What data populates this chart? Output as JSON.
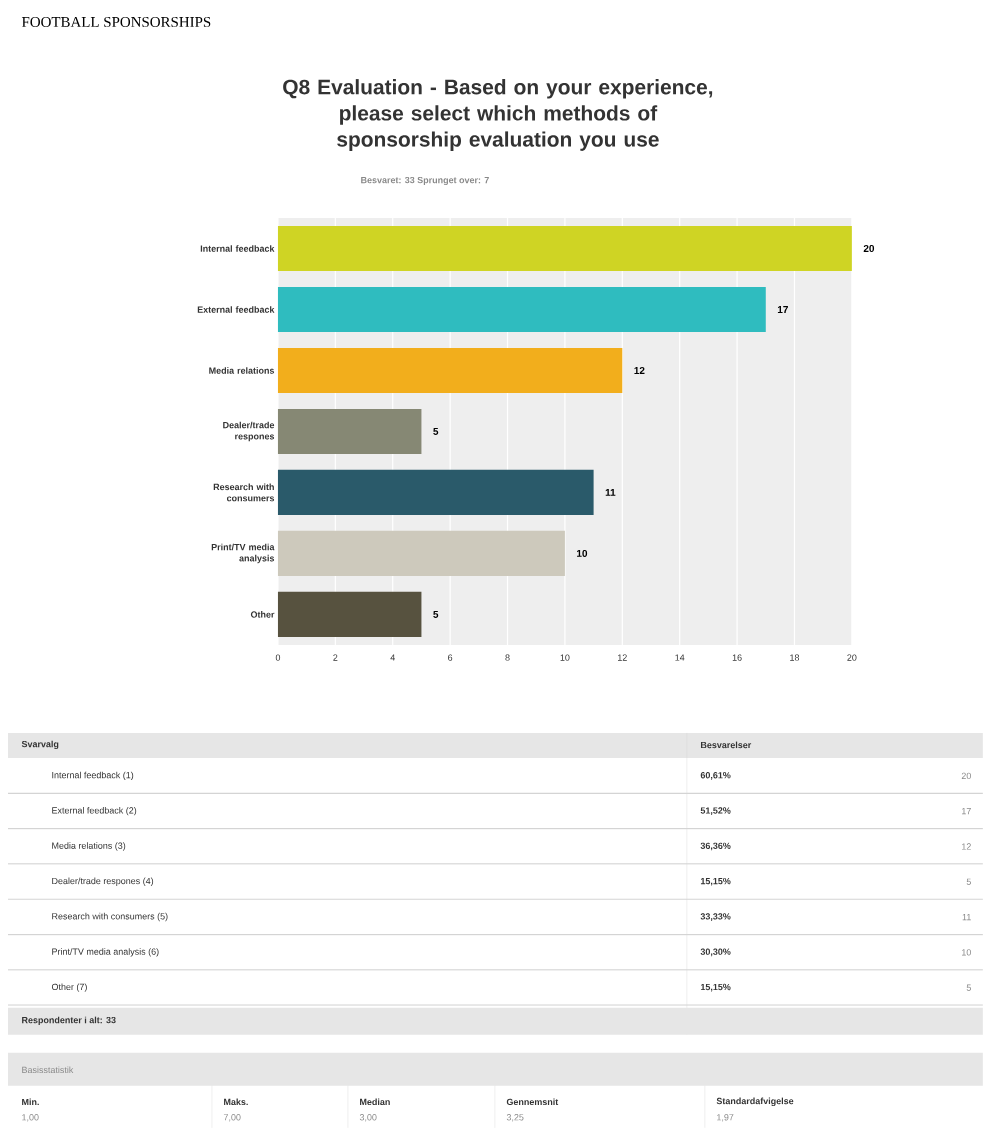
{
  "chart_data": {
    "type": "bar",
    "orientation": "horizontal",
    "title": "Q8 Evaluation - Based on your experience, please select which methods of sponsorship evaluation you use",
    "subtitle": "Besvaret: 33    Sprunget over: 7",
    "categories": [
      "Internal feedback",
      "External feedback",
      "Media relations",
      "Dealer/trade respones",
      "Research with consumers",
      "Print/TV media analysis",
      "Other"
    ],
    "values": [
      20,
      17,
      12,
      5,
      11,
      10,
      5
    ],
    "colors": [
      "#cfd424",
      "#2fbcbf",
      "#f2ae1c",
      "#868874",
      "#2a5a6a",
      "#cdc9bc",
      "#57523f"
    ],
    "xlim": [
      0,
      20
    ],
    "xticks": [
      0,
      2,
      4,
      6,
      8,
      10,
      12,
      14,
      16,
      18,
      20
    ],
    "grid": "x",
    "data_labels": true,
    "annotations": [
      "FOOTBALL SPONSORSHIPS",
      "Svarvalg",
      "Besvarelser",
      "Internal feedback (1)",
      "60,61%",
      "20",
      "External feedback (2)",
      "51,52%",
      "17",
      "Media relations (3)",
      "36,36%",
      "12",
      "Dealer/trade respones (4)",
      "15,15%",
      "5",
      "Research with consumers (5)",
      "33,33%",
      "11",
      "Print/TV media analysis (6)",
      "30,30%",
      "10",
      "Other (7)",
      "15,15%",
      "5",
      "Respondenter i alt: 33",
      "Basisstatistik",
      "Min.",
      "1,00",
      "Maks.",
      "7,00",
      "Median",
      "3,00",
      "Gennemsnit",
      "3,25",
      "Standardafvigelse",
      "1,97"
    ]
  }
}
